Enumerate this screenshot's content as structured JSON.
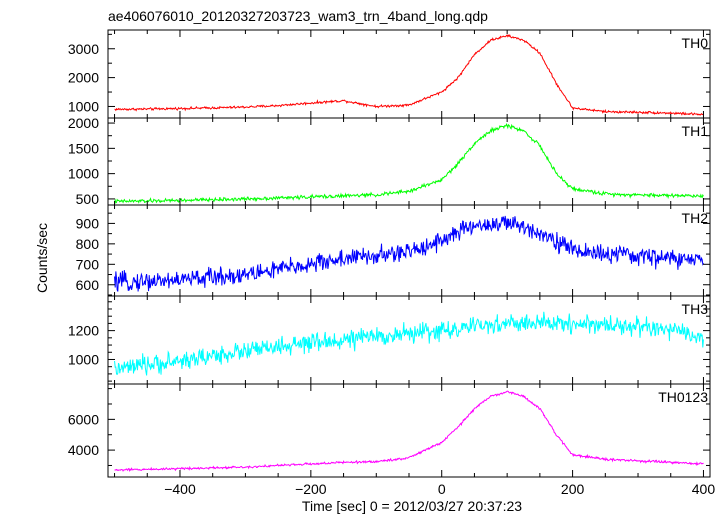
{
  "chart_data": {
    "type": "line",
    "title": "ae406076010_20120327203723_wam3_trn_4band_long.qdp",
    "xlabel": "Time [sec] 0 = 2012/03/27 20:37:23",
    "ylabel": "Counts/sec",
    "xlim": [
      -510,
      410
    ],
    "xticks": [
      -400,
      -200,
      0,
      200,
      400
    ],
    "x_minor_step": 50,
    "grid": false,
    "legend": "none",
    "series": [
      {
        "name": "TH0",
        "color": "#ff0000",
        "ylim": [
          600,
          3650
        ],
        "yticks": [
          1000,
          2000,
          3000
        ],
        "y_minor_step": 500,
        "x": [
          -500,
          -450,
          -400,
          -350,
          -300,
          -250,
          -200,
          -150,
          -100,
          -50,
          0,
          25,
          50,
          75,
          100,
          125,
          150,
          175,
          200,
          250,
          300,
          350,
          400
        ],
        "y": [
          900,
          910,
          930,
          950,
          980,
          1030,
          1120,
          1200,
          1000,
          1050,
          1500,
          2000,
          2800,
          3300,
          3450,
          3300,
          2850,
          1800,
          950,
          820,
          800,
          770,
          720
        ],
        "noise": 25
      },
      {
        "name": "TH1",
        "color": "#00ff00",
        "ylim": [
          380,
          2100
        ],
        "yticks": [
          500,
          1000,
          1500,
          2000
        ],
        "y_minor_step": 250,
        "x": [
          -500,
          -400,
          -300,
          -200,
          -100,
          -50,
          0,
          25,
          50,
          75,
          100,
          125,
          150,
          175,
          200,
          250,
          300,
          400
        ],
        "y": [
          450,
          470,
          500,
          540,
          580,
          650,
          880,
          1200,
          1600,
          1850,
          1950,
          1850,
          1550,
          1000,
          700,
          600,
          580,
          560
        ],
        "noise": 22
      },
      {
        "name": "TH2",
        "color": "#0000ff",
        "ylim": [
          545,
          990
        ],
        "yticks": [
          600,
          700,
          800,
          900
        ],
        "y_minor_step": 50,
        "x": [
          -500,
          -400,
          -300,
          -200,
          -150,
          -100,
          -50,
          0,
          50,
          100,
          150,
          200,
          250,
          300,
          350,
          400
        ],
        "y": [
          610,
          625,
          650,
          700,
          730,
          740,
          760,
          820,
          890,
          900,
          860,
          770,
          750,
          740,
          730,
          715
        ],
        "noise": 28
      },
      {
        "name": "TH3",
        "color": "#00ffff",
        "ylim": [
          830,
          1440
        ],
        "yticks": [
          1000,
          1200
        ],
        "y_minor_step": 50,
        "x": [
          -500,
          -400,
          -300,
          -200,
          -100,
          0,
          100,
          200,
          300,
          350,
          400
        ],
        "y": [
          930,
          990,
          1060,
          1110,
          1160,
          1200,
          1250,
          1250,
          1230,
          1200,
          1150
        ],
        "noise": 40
      },
      {
        "name": "TH0123",
        "color": "#ff00ff",
        "ylim": [
          2250,
          8300
        ],
        "yticks": [
          4000,
          6000
        ],
        "y_minor_step": 1000,
        "x": [
          -500,
          -400,
          -300,
          -200,
          -150,
          -100,
          -50,
          0,
          25,
          50,
          75,
          100,
          125,
          150,
          175,
          200,
          250,
          300,
          350,
          400
        ],
        "y": [
          2700,
          2800,
          2900,
          3100,
          3200,
          3250,
          3500,
          4500,
          5500,
          6700,
          7500,
          7800,
          7500,
          6700,
          5000,
          3700,
          3400,
          3300,
          3200,
          3100
        ],
        "noise": 45
      }
    ]
  }
}
